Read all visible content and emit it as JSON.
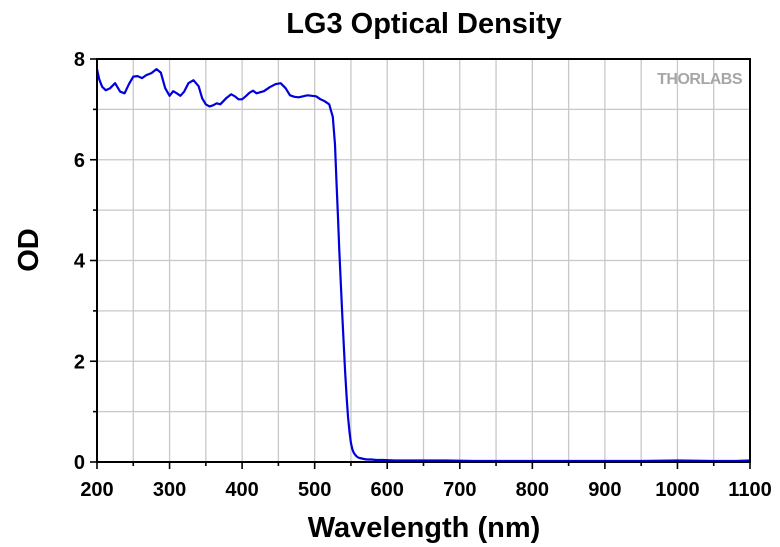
{
  "chart_data": {
    "type": "line",
    "title": "LG3 Optical Density",
    "xlabel": "Wavelength (nm)",
    "ylabel": "OD",
    "xlim": [
      200,
      1100
    ],
    "ylim": [
      0,
      8
    ],
    "x_ticks": [
      "200",
      "300",
      "400",
      "500",
      "600",
      "700",
      "800",
      "900",
      "1000",
      "1100"
    ],
    "y_ticks": [
      "0",
      "2",
      "4",
      "6",
      "8"
    ],
    "grid": true,
    "legend": "none",
    "watermark": "THORLABS",
    "series_color": "#0000dd",
    "series": [
      {
        "x": [
          200,
          203,
          207,
          212,
          218,
          225,
          232,
          238,
          244,
          250,
          256,
          262,
          268,
          275,
          282,
          288,
          294,
          300,
          305,
          310,
          315,
          320,
          326,
          333,
          340,
          345,
          350,
          355,
          360,
          365,
          370,
          378,
          385,
          390,
          395,
          400,
          405,
          410,
          415,
          420,
          425,
          430,
          438,
          446,
          453,
          460,
          466,
          472,
          478,
          484,
          490,
          496,
          502,
          508,
          514,
          520,
          525,
          528,
          530,
          532,
          534,
          536,
          538,
          540,
          542,
          544,
          546,
          548,
          550,
          552,
          554,
          556,
          558,
          560,
          562,
          565,
          568,
          572,
          578,
          585,
          595,
          610,
          630,
          650,
          680,
          720,
          760,
          800,
          850,
          900,
          950,
          1000,
          1050,
          1080,
          1100
        ],
        "y": [
          7.8,
          7.6,
          7.45,
          7.38,
          7.42,
          7.52,
          7.35,
          7.32,
          7.5,
          7.65,
          7.66,
          7.62,
          7.68,
          7.72,
          7.8,
          7.73,
          7.42,
          7.27,
          7.36,
          7.32,
          7.27,
          7.35,
          7.52,
          7.58,
          7.46,
          7.22,
          7.1,
          7.06,
          7.08,
          7.12,
          7.1,
          7.22,
          7.3,
          7.26,
          7.2,
          7.2,
          7.26,
          7.33,
          7.37,
          7.32,
          7.34,
          7.36,
          7.44,
          7.5,
          7.52,
          7.42,
          7.28,
          7.25,
          7.24,
          7.26,
          7.28,
          7.27,
          7.26,
          7.2,
          7.16,
          7.1,
          6.85,
          6.3,
          5.6,
          4.9,
          4.2,
          3.55,
          2.95,
          2.35,
          1.8,
          1.3,
          0.9,
          0.6,
          0.38,
          0.25,
          0.18,
          0.14,
          0.11,
          0.09,
          0.08,
          0.07,
          0.06,
          0.05,
          0.05,
          0.04,
          0.04,
          0.03,
          0.03,
          0.03,
          0.03,
          0.02,
          0.02,
          0.02,
          0.02,
          0.02,
          0.02,
          0.03,
          0.02,
          0.02,
          0.03
        ]
      }
    ]
  }
}
